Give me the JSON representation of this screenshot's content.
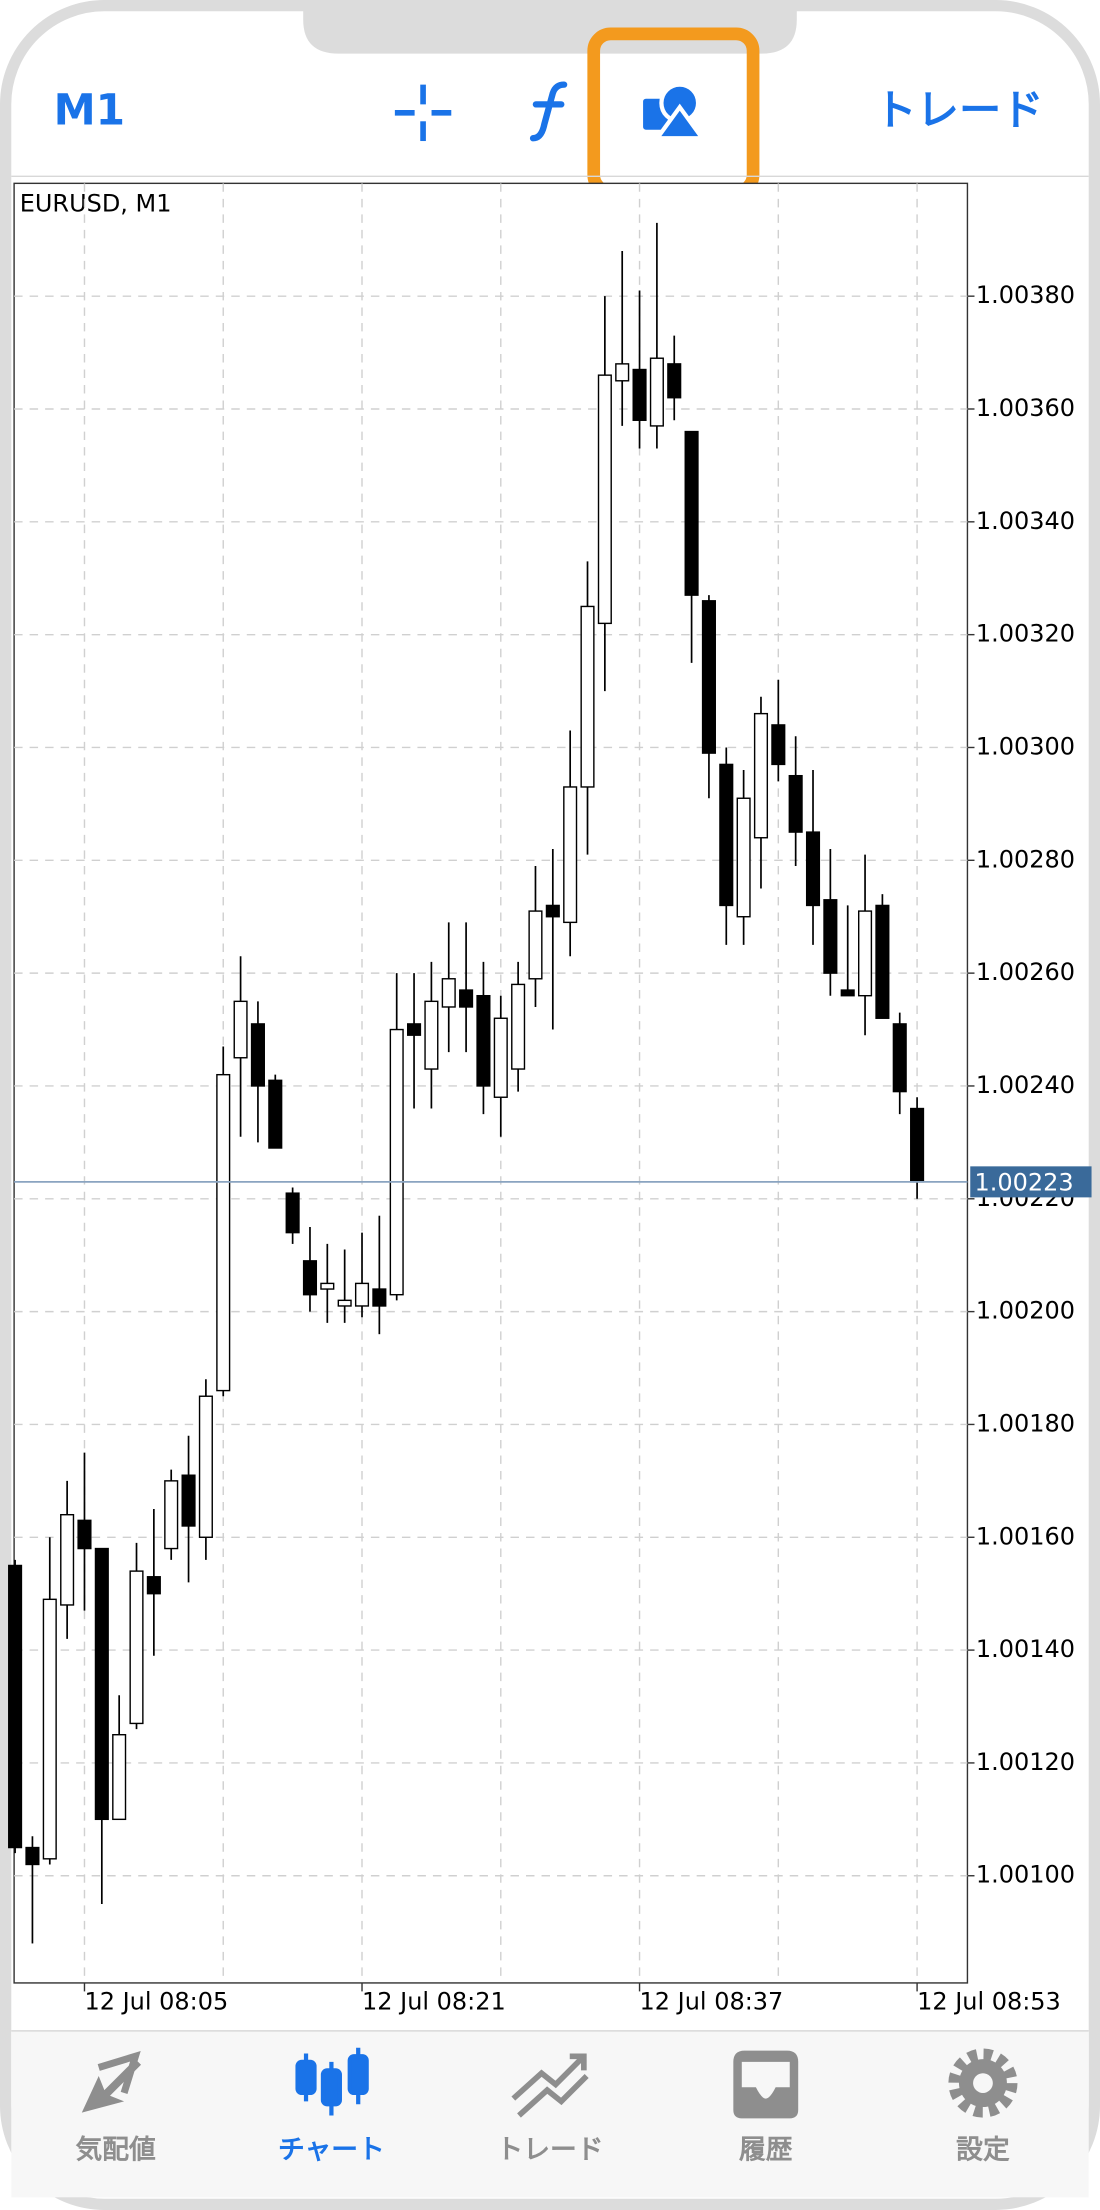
{
  "header": {
    "timeframe": "M1",
    "trade": "トレード"
  },
  "chart_data": {
    "type": "candlestick",
    "title": "EURUSD, M1",
    "categories": [
      null,
      null,
      null,
      null,
      "12 Jul 08:05",
      null,
      null,
      null,
      null,
      null,
      null,
      null,
      null,
      null,
      null,
      null,
      null,
      null,
      null,
      null,
      "12 Jul 08:21",
      null,
      null,
      null,
      null,
      null,
      null,
      null,
      null,
      null,
      null,
      null,
      null,
      null,
      null,
      null,
      "12 Jul 08:37",
      null,
      null,
      null,
      null,
      null,
      null,
      null,
      null,
      null,
      null,
      null,
      null,
      null,
      null,
      null,
      "12 Jul 08:53"
    ],
    "open": [
      1.00155,
      1.00105,
      1.00103,
      1.00148,
      1.00163,
      1.00158,
      1.0011,
      1.00127,
      1.00153,
      1.00158,
      1.00171,
      1.0016,
      1.00186,
      1.00245,
      1.00251,
      1.00241,
      1.00221,
      1.00209,
      1.00204,
      1.00201,
      1.00201,
      1.00204,
      1.00203,
      1.00251,
      1.00243,
      1.00254,
      1.00257,
      1.00256,
      1.00238,
      1.00243,
      1.00259,
      1.00272,
      1.00269,
      1.00293,
      1.00322,
      1.00365,
      1.00367,
      1.00357,
      1.00368,
      1.00356,
      1.00326,
      1.00297,
      1.0027,
      1.00284,
      1.00304,
      1.00295,
      1.00285,
      1.00273,
      1.00257,
      1.00256,
      1.00272,
      1.00251,
      1.00236
    ],
    "high": [
      1.00156,
      1.00107,
      1.0016,
      1.0017,
      1.00175,
      1.00158,
      1.00132,
      1.00159,
      1.00165,
      1.00172,
      1.00178,
      1.00188,
      1.00247,
      1.00263,
      1.00255,
      1.00242,
      1.00222,
      1.00215,
      1.00212,
      1.00211,
      1.00214,
      1.00217,
      1.0026,
      1.0026,
      1.00262,
      1.00269,
      1.00269,
      1.00262,
      1.00256,
      1.00262,
      1.00279,
      1.00282,
      1.00303,
      1.00333,
      1.0038,
      1.00388,
      1.00381,
      1.00393,
      1.00373,
      1.00356,
      1.00327,
      1.003,
      1.00296,
      1.00309,
      1.00312,
      1.00302,
      1.00296,
      1.00282,
      1.00272,
      1.00281,
      1.00274,
      1.00253,
      1.00238
    ],
    "low": [
      1.00104,
      1.00088,
      1.00102,
      1.00142,
      1.00147,
      1.00095,
      1.0011,
      1.00126,
      1.00139,
      1.00156,
      1.00152,
      1.00156,
      1.00185,
      1.00231,
      1.0023,
      1.00229,
      1.00212,
      1.002,
      1.00198,
      1.00198,
      1.00199,
      1.00196,
      1.00202,
      1.00236,
      1.00236,
      1.00246,
      1.00246,
      1.00235,
      1.00231,
      1.00239,
      1.00254,
      1.0025,
      1.00263,
      1.00281,
      1.0031,
      1.00357,
      1.00353,
      1.00353,
      1.00358,
      1.00315,
      1.00291,
      1.00265,
      1.00265,
      1.00275,
      1.00294,
      1.00279,
      1.00265,
      1.00256,
      1.00256,
      1.00249,
      1.00252,
      1.00235,
      1.0022
    ],
    "close": [
      1.00105,
      1.00102,
      1.00149,
      1.00164,
      1.00158,
      1.0011,
      1.00125,
      1.00154,
      1.0015,
      1.0017,
      1.00162,
      1.00185,
      1.00242,
      1.00255,
      1.0024,
      1.00229,
      1.00214,
      1.00203,
      1.00205,
      1.00202,
      1.00205,
      1.00201,
      1.0025,
      1.00249,
      1.00255,
      1.00259,
      1.00254,
      1.0024,
      1.00252,
      1.00258,
      1.00271,
      1.0027,
      1.00293,
      1.00325,
      1.00366,
      1.00368,
      1.00358,
      1.00369,
      1.00362,
      1.00327,
      1.00299,
      1.00272,
      1.00291,
      1.00306,
      1.00297,
      1.00285,
      1.00272,
      1.0026,
      1.00256,
      1.00271,
      1.00252,
      1.00239,
      1.00223
    ],
    "up_color": "#ffffff",
    "down_color": "#000000",
    "current_price": 1.00223,
    "current_price_color": "#3a6a9a",
    "ylim": [
      1.00081,
      1.004
    ],
    "yticks": [
      {
        "value": 1.001,
        "label": "1.00100"
      },
      {
        "value": 1.0012,
        "label": "1.00120"
      },
      {
        "value": 1.0014,
        "label": "1.00140"
      },
      {
        "value": 1.0016,
        "label": "1.00160"
      },
      {
        "value": 1.0018,
        "label": "1.00180"
      },
      {
        "value": 1.002,
        "label": "1.00200"
      },
      {
        "value": 1.0022,
        "label": "1.00220"
      },
      {
        "value": 1.0024,
        "label": "1.00240"
      },
      {
        "value": 1.0026,
        "label": "1.00260"
      },
      {
        "value": 1.0028,
        "label": "1.00280"
      },
      {
        "value": 1.003,
        "label": "1.00300"
      },
      {
        "value": 1.0032,
        "label": "1.00320"
      },
      {
        "value": 1.0034,
        "label": "1.00340"
      },
      {
        "value": 1.0036,
        "label": "1.00360"
      },
      {
        "value": 1.0038,
        "label": "1.00380"
      }
    ],
    "grid": true
  },
  "tabs": [
    "気配値",
    "チャート",
    "トレード",
    "履歴",
    "設定"
  ]
}
